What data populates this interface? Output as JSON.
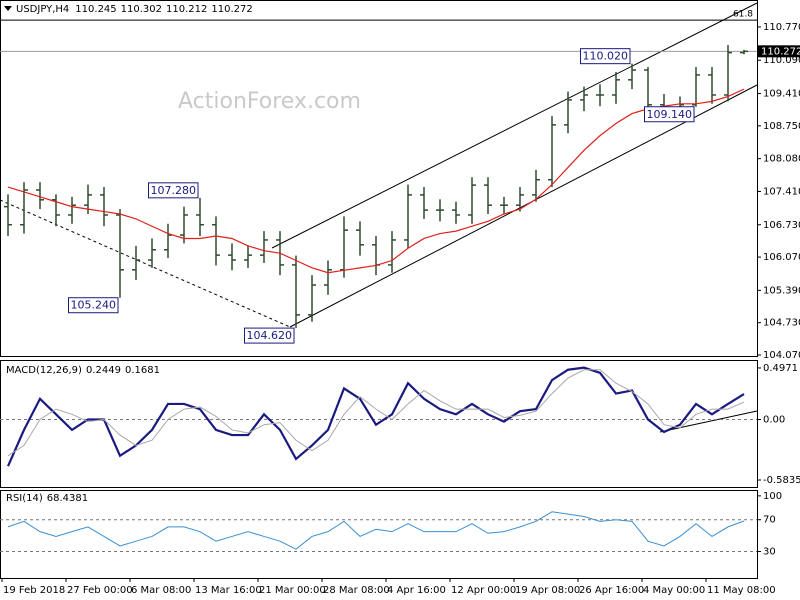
{
  "chart_data": [
    {
      "type": "ohlc",
      "title": "USDJPY,H4",
      "watermark": "ActionForex.com",
      "color": "#2f4a2f",
      "categories": [
        "19 Feb 2018",
        null,
        null,
        null,
        "27 Feb 00:00",
        null,
        null,
        null,
        "6 Mar 08:00",
        null,
        null,
        null,
        "13 Mar 16:00",
        null,
        null,
        null,
        "21 Mar 00:00",
        null,
        null,
        null,
        "28 Mar 08:00",
        null,
        null,
        null,
        "4 Apr 16:00",
        null,
        null,
        null,
        "12 Apr 00:00",
        null,
        null,
        null,
        "19 Apr 08:00",
        null,
        null,
        null,
        "26 Apr 16:00",
        null,
        null,
        null,
        "4 May 00:00",
        null,
        null,
        null,
        "11 May 08:00",
        null,
        null
      ],
      "open": [
        107.1,
        106.73,
        107.44,
        107.24,
        106.93,
        107.13,
        107.34,
        106.93,
        105.81,
        106.01,
        106.22,
        106.52,
        106.93,
        106.73,
        106.11,
        106.01,
        106.11,
        106.42,
        105.91,
        104.89,
        105.5,
        105.81,
        106.62,
        106.32,
        105.91,
        106.42,
        107.34,
        107.03,
        107.03,
        106.93,
        107.54,
        107.13,
        107.13,
        107.34,
        107.65,
        108.77,
        109.28,
        109.38,
        109.38,
        109.69,
        109.89,
        109.18,
        109.08,
        109.18,
        109.79,
        109.38,
        110.245
      ],
      "high": [
        107.35,
        107.6,
        107.6,
        107.35,
        107.3,
        107.55,
        107.5,
        107.05,
        106.3,
        106.45,
        106.75,
        107.1,
        107.28,
        106.9,
        106.35,
        106.3,
        106.6,
        106.6,
        106.1,
        105.7,
        106.0,
        106.9,
        106.8,
        106.5,
        106.6,
        107.55,
        107.5,
        107.25,
        107.2,
        107.7,
        107.7,
        107.3,
        107.5,
        107.85,
        108.95,
        109.45,
        109.55,
        109.6,
        109.85,
        110.02,
        109.95,
        109.4,
        109.35,
        109.95,
        109.95,
        110.4,
        110.302
      ],
      "low": [
        106.5,
        106.55,
        107.05,
        106.7,
        106.75,
        106.95,
        106.7,
        105.24,
        105.6,
        105.85,
        106.05,
        106.35,
        106.5,
        105.9,
        105.8,
        105.85,
        105.95,
        105.7,
        104.62,
        104.75,
        105.3,
        105.65,
        106.1,
        105.7,
        105.75,
        106.25,
        106.85,
        106.8,
        106.75,
        106.75,
        106.95,
        106.95,
        107.0,
        107.2,
        107.5,
        108.6,
        109.05,
        109.15,
        109.2,
        109.5,
        109.0,
        108.85,
        108.9,
        109.14,
        109.2,
        109.25,
        110.212
      ],
      "close": [
        106.73,
        107.44,
        107.24,
        106.93,
        107.13,
        107.34,
        106.93,
        105.81,
        106.01,
        106.22,
        106.52,
        106.93,
        106.73,
        106.11,
        106.01,
        106.11,
        106.42,
        105.91,
        104.89,
        105.5,
        105.81,
        106.62,
        106.32,
        105.91,
        106.42,
        107.34,
        107.03,
        107.03,
        106.93,
        107.54,
        107.13,
        107.13,
        107.34,
        107.65,
        108.77,
        109.28,
        109.38,
        109.38,
        109.69,
        109.89,
        109.18,
        109.08,
        109.18,
        109.79,
        109.38,
        110.245,
        110.272
      ],
      "close_label": "110.272",
      "moving_average": {
        "color": "#e0201b",
        "values": [
          107.5,
          107.4,
          107.3,
          107.2,
          107.1,
          107.05,
          107.0,
          106.95,
          106.85,
          106.7,
          106.55,
          106.45,
          106.45,
          106.5,
          106.45,
          106.3,
          106.2,
          106.15,
          106.0,
          105.85,
          105.75,
          105.8,
          105.85,
          105.9,
          106.0,
          106.25,
          106.45,
          106.55,
          106.6,
          106.7,
          106.8,
          106.95,
          107.05,
          107.25,
          107.55,
          107.9,
          108.25,
          108.55,
          108.8,
          109.0,
          109.1,
          109.15,
          109.2,
          109.2,
          109.25,
          109.35,
          109.5
        ]
      },
      "fib_level": {
        "label": "61.8",
        "price": 110.91
      },
      "annotations": [
        {
          "value": 107.28,
          "label": "107.280"
        },
        {
          "value": 105.24,
          "label": "105.240"
        },
        {
          "value": 104.62,
          "label": "104.620"
        },
        {
          "value": 110.02,
          "label": "110.020"
        },
        {
          "value": 109.14,
          "label": "109.140"
        }
      ],
      "ylim": [
        104.05,
        111.32
      ],
      "yticks": [
        {
          "value": 110.77,
          "label": "110.770"
        },
        {
          "value": 110.09,
          "label": "110.090"
        },
        {
          "value": 109.41,
          "label": "109.410"
        },
        {
          "value": 108.75,
          "label": "108.750"
        },
        {
          "value": 108.08,
          "label": "108.080"
        },
        {
          "value": 107.41,
          "label": "107.410"
        },
        {
          "value": 106.73,
          "label": "106.730"
        },
        {
          "value": 106.07,
          "label": "106.070"
        },
        {
          "value": 105.39,
          "label": "105.390"
        },
        {
          "value": 104.73,
          "label": "104.730"
        },
        {
          "value": 104.07,
          "label": "104.070"
        }
      ]
    },
    {
      "type": "line",
      "title": "MACD(12,26,9)",
      "series": [
        {
          "color": "#1a1a80",
          "values": [
            -0.45,
            -0.1,
            0.2,
            0.05,
            -0.1,
            0.0,
            0.0,
            -0.35,
            -0.25,
            -0.1,
            0.15,
            0.15,
            0.1,
            -0.1,
            -0.15,
            -0.15,
            0.05,
            -0.1,
            -0.38,
            -0.25,
            -0.1,
            0.3,
            0.2,
            -0.05,
            0.05,
            0.35,
            0.2,
            0.1,
            0.05,
            0.15,
            0.05,
            -0.02,
            0.08,
            0.1,
            0.38,
            0.48,
            0.5,
            0.45,
            0.25,
            0.28,
            0.0,
            -0.12,
            -0.05,
            0.15,
            0.05,
            0.15,
            0.2449
          ]
        },
        {
          "color": "#a8a8a8",
          "values": [
            -0.35,
            -0.25,
            0.0,
            0.1,
            0.05,
            -0.02,
            0.0,
            -0.15,
            -0.25,
            -0.2,
            0.0,
            0.1,
            0.12,
            0.03,
            -0.1,
            -0.13,
            -0.05,
            -0.03,
            -0.2,
            -0.3,
            -0.2,
            0.05,
            0.22,
            0.1,
            0.0,
            0.15,
            0.28,
            0.18,
            0.1,
            0.1,
            0.1,
            0.02,
            0.04,
            0.08,
            0.25,
            0.4,
            0.48,
            0.48,
            0.35,
            0.27,
            0.15,
            -0.05,
            -0.08,
            0.05,
            0.1,
            0.1,
            0.1681
          ]
        }
      ],
      "levels": [
        0
      ],
      "ylim": [
        -0.651,
        0.574
      ],
      "yticks": [
        0.4971,
        {
          "value": 0,
          "label": "0.00"
        },
        -0.5835
      ]
    },
    {
      "type": "line",
      "title": "RSI(14)",
      "series": [
        {
          "color": "#3a8fd0",
          "values": [
            61,
            68,
            55,
            49,
            55,
            61,
            49,
            37,
            43,
            49,
            61,
            61,
            55,
            43,
            49,
            55,
            49,
            43,
            33,
            49,
            55,
            68,
            49,
            58,
            55,
            65,
            55,
            55,
            55,
            65,
            53,
            55,
            61,
            68,
            80,
            77,
            74,
            68,
            70,
            68,
            43,
            37,
            49,
            65,
            49,
            61,
            68.4381
          ]
        }
      ],
      "levels": [
        70,
        30
      ],
      "ylim": [
        -3.3,
        107.4
      ],
      "yticks": [
        100,
        70,
        30
      ]
    }
  ]
}
